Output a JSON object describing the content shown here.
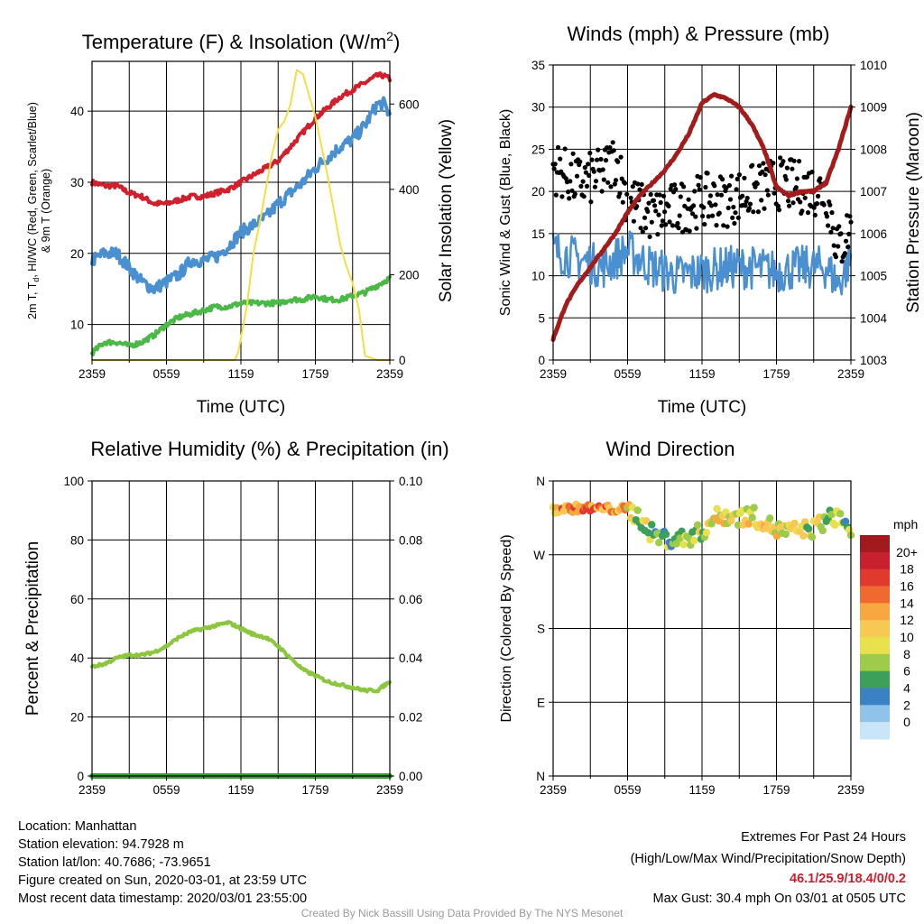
{
  "colors": {
    "red": "#d0202e",
    "blue": "#4a90d0",
    "green": "#4cb848",
    "orange": "#f39a2e",
    "yellow": "#f6dd46",
    "black": "#000000",
    "maroon": "#a31c1c",
    "rh": "#8cc63f",
    "precip": "#3a9a3a"
  },
  "chart_data": [
    {
      "id": "temp",
      "type": "line",
      "title": "Temperature (F) & Insolation (W/m",
      "title_sup": "2",
      "title_end": ")",
      "xlabel": "Time (UTC)",
      "ylabel_left_1": "2m T, T",
      "ylabel_left_sub": "d",
      "ylabel_left_2": ", HI/WC (Red, Green, Scarlet/Blue)",
      "ylabel_left_3": "& 9m T (Orange)",
      "ylabel_right": "Solar Insolation (Yellow)",
      "xticks": [
        "2359",
        "0559",
        "1159",
        "1759",
        "2359"
      ],
      "xlim": [
        0,
        24
      ],
      "ylim": [
        5,
        47
      ],
      "yticks": [
        10,
        20,
        30,
        40
      ],
      "ylim_right": [
        0,
        700
      ],
      "yticks_right": [
        0,
        200,
        400,
        600
      ],
      "series": [
        {
          "color_key": "red",
          "width": 4,
          "noise": 0.35,
          "x": [
            0,
            1,
            2,
            3,
            4,
            5,
            6,
            7,
            8,
            9,
            10,
            11,
            12,
            13,
            14,
            15,
            16,
            17,
            18,
            19,
            20,
            21,
            22,
            23,
            23.5,
            24
          ],
          "y": [
            30,
            29.5,
            29.5,
            28.5,
            28,
            27,
            27,
            27.5,
            28,
            28,
            28.5,
            29,
            30,
            31,
            32,
            33,
            35,
            37,
            39,
            40.5,
            42,
            43,
            44,
            45,
            45,
            44.5
          ]
        },
        {
          "color_key": "blue",
          "width": 4,
          "noise": 0.9,
          "x": [
            0,
            1,
            2,
            3,
            4,
            5,
            6,
            7,
            8,
            9,
            10,
            11,
            12,
            13,
            14,
            15,
            16,
            17,
            18,
            19,
            20,
            21,
            22,
            23,
            23.5,
            24
          ],
          "y": [
            19,
            20,
            20,
            18,
            16,
            15,
            16,
            17,
            19,
            19,
            19.5,
            21,
            23,
            24,
            25,
            27,
            28.5,
            30,
            32,
            33.5,
            35,
            36,
            38,
            41,
            41,
            39.5
          ]
        },
        {
          "color_key": "green",
          "width": 4,
          "noise": 0.35,
          "x": [
            0,
            1,
            2,
            3,
            4,
            5,
            6,
            7,
            8,
            9,
            10,
            11,
            12,
            13,
            14,
            15,
            16,
            17,
            18,
            19,
            20,
            21,
            22,
            23,
            24
          ],
          "y": [
            6,
            7.5,
            7.5,
            7,
            7.5,
            8.5,
            10,
            11,
            11.5,
            12,
            12.5,
            12.5,
            13,
            13,
            13,
            13,
            13.5,
            13.5,
            14,
            13.5,
            13.5,
            14,
            14.5,
            15.5,
            16.5
          ]
        },
        {
          "color_key": "yellow",
          "width": 2,
          "axis": "right",
          "noise": 0,
          "x": [
            0,
            11.5,
            11.8,
            12.5,
            13,
            13.5,
            14,
            14.5,
            15,
            15.5,
            16,
            16.5,
            17,
            17.5,
            18,
            18.5,
            19,
            19.5,
            20,
            20.5,
            21,
            21.5,
            22,
            23,
            24
          ],
          "y": [
            0,
            0,
            20,
            130,
            250,
            320,
            400,
            480,
            540,
            560,
            600,
            680,
            670,
            620,
            570,
            500,
            430,
            350,
            270,
            220,
            180,
            120,
            10,
            0,
            0
          ]
        }
      ]
    },
    {
      "id": "winds",
      "type": "line",
      "title": "Winds (mph) & Pressure (mb)",
      "xlabel": "Time (UTC)",
      "ylabel_left": "Sonic Wind & Gust (Blue, Black)",
      "ylabel_right": "Station Pressure (Maroon)",
      "xticks": [
        "2359",
        "0559",
        "1159",
        "1759",
        "2359"
      ],
      "xlim": [
        0,
        24
      ],
      "ylim": [
        0,
        35
      ],
      "yticks": [
        0,
        5,
        10,
        15,
        20,
        25,
        30,
        35
      ],
      "ylim_right": [
        1003,
        1010
      ],
      "yticks_right": [
        1003,
        1004,
        1005,
        1006,
        1007,
        1008,
        1009,
        1010
      ],
      "wind": {
        "color_key": "blue",
        "width": 2.5,
        "noise": 2.6,
        "x": [
          0,
          2,
          4,
          5,
          6,
          8,
          10,
          12,
          14,
          16,
          18,
          20,
          22,
          23,
          24
        ],
        "y": [
          13,
          12,
          11,
          12,
          13,
          11,
          10,
          10.5,
          11,
          11,
          10.5,
          11,
          11,
          9,
          12
        ]
      },
      "gust": {
        "color_key": "black",
        "count": 300,
        "spread": 3.2,
        "x": [
          0,
          2,
          4,
          5,
          6,
          8,
          10,
          12,
          14,
          16,
          18,
          20,
          22,
          23,
          24
        ],
        "y": [
          23,
          21,
          22,
          24,
          19,
          17,
          18,
          19,
          19,
          20,
          21,
          20.5,
          20,
          13,
          16
        ]
      },
      "pressure": {
        "color_key": "maroon",
        "width": 5,
        "noise": 0.02,
        "axis": "right",
        "x": [
          0,
          1,
          2,
          3,
          4,
          5,
          6,
          7,
          8,
          9,
          10,
          11,
          12,
          13,
          14,
          15,
          16,
          17,
          18,
          19,
          20,
          21,
          22,
          23,
          24
        ],
        "y": [
          1003.5,
          1004.3,
          1004.8,
          1005.2,
          1005.6,
          1006,
          1006.5,
          1006.9,
          1007.2,
          1007.5,
          1007.9,
          1008.4,
          1009.1,
          1009.3,
          1009.2,
          1009,
          1008.6,
          1008,
          1007.1,
          1006.9,
          1007,
          1007,
          1007.2,
          1008,
          1009
        ]
      }
    },
    {
      "id": "rh",
      "type": "line",
      "title": "Relative Humidity (%) & Precipitation (in)",
      "ylabel_left": "Percent & Precipitation",
      "xticks": [
        "2359",
        "0559",
        "1159",
        "1759",
        "2359"
      ],
      "xlim": [
        0,
        24
      ],
      "ylim": [
        0,
        100
      ],
      "yticks": [
        0,
        20,
        40,
        60,
        80,
        100
      ],
      "ylim_right": [
        0,
        0.1
      ],
      "yticks_right": [
        "0.00",
        "0.02",
        "0.04",
        "0.06",
        "0.08",
        "0.10"
      ],
      "series": [
        {
          "color_key": "rh",
          "width": 4,
          "noise": 0.5,
          "x": [
            0,
            1,
            2,
            3,
            4,
            5,
            6,
            7,
            8,
            9,
            10,
            11,
            12,
            13,
            14,
            15,
            16,
            17,
            18,
            19,
            20,
            21,
            22,
            23,
            24
          ],
          "y": [
            37,
            38,
            40,
            41,
            41,
            42,
            44,
            47,
            49,
            50,
            51,
            52,
            50,
            48,
            47,
            44,
            40,
            36,
            34,
            32,
            31,
            30,
            29,
            29,
            32
          ]
        },
        {
          "color_key": "precip",
          "width": 6,
          "noise": 0,
          "x": [
            0,
            24
          ],
          "y": [
            0,
            0
          ]
        }
      ]
    },
    {
      "id": "wdir",
      "type": "scatter",
      "title": "Wind Direction",
      "ylabel_left": "Direction (Colored By Speed)",
      "xticks": [
        "2359",
        "0559",
        "1159",
        "1759",
        "2359"
      ],
      "xlim": [
        0,
        24
      ],
      "ylim": [
        0,
        360
      ],
      "ytick_values": [
        0,
        90,
        180,
        270,
        360
      ],
      "ytick_labels": [
        "N",
        "E",
        "S",
        "W",
        "N"
      ],
      "dir_x": [
        0,
        2,
        4,
        6,
        7,
        8,
        9,
        10,
        11,
        12,
        13,
        14,
        15,
        16,
        17,
        18,
        19,
        20,
        21,
        22,
        23,
        24
      ],
      "dir_y": [
        325,
        327,
        326,
        325,
        315,
        295,
        290,
        288,
        292,
        298,
        315,
        318,
        316,
        318,
        310,
        300,
        298,
        300,
        302,
        312,
        318,
        300
      ],
      "spd_x": [
        0,
        3,
        5,
        6,
        7,
        9,
        12,
        14,
        16,
        18,
        20,
        22,
        23,
        24
      ],
      "spd_y": [
        15,
        16,
        15,
        12,
        9,
        8,
        10,
        12,
        11,
        12,
        10,
        9,
        7,
        9
      ],
      "colorbar": {
        "unit": "mph",
        "labels": [
          "20+",
          "18",
          "16",
          "14",
          "12",
          "10",
          "8",
          "6",
          "4",
          "2",
          "0"
        ],
        "colors": [
          "#a01a1e",
          "#c8202f",
          "#e03a2e",
          "#f06a30",
          "#f7a840",
          "#f8c855",
          "#e9e04e",
          "#9ccc4a",
          "#3ca05a",
          "#3b82c4",
          "#8fc3ea",
          "#c8e6f8"
        ]
      }
    }
  ],
  "footer": {
    "location": "Location: Manhattan",
    "elevation": "Station elevation: 94.7928 m",
    "latlon": "Station lat/lon: 40.7686; -73.9651",
    "created": "Figure created on Sun, 2020-03-01, at 23:59 UTC",
    "recent": "Most recent data timestamp: 2020/03/01 23:55:00",
    "extremes_title": "Extremes For Past 24 Hours",
    "extremes_subtitle": "(High/Low/Max Wind/Precipitation/Snow Depth)",
    "extremes_values": "46.1/25.9/18.4/0/0.2",
    "max_gust": "Max Gust: 30.4 mph On 03/01 at 0505 UTC",
    "credit": "Created By Nick Bassill Using Data Provided By The NYS Mesonet"
  }
}
